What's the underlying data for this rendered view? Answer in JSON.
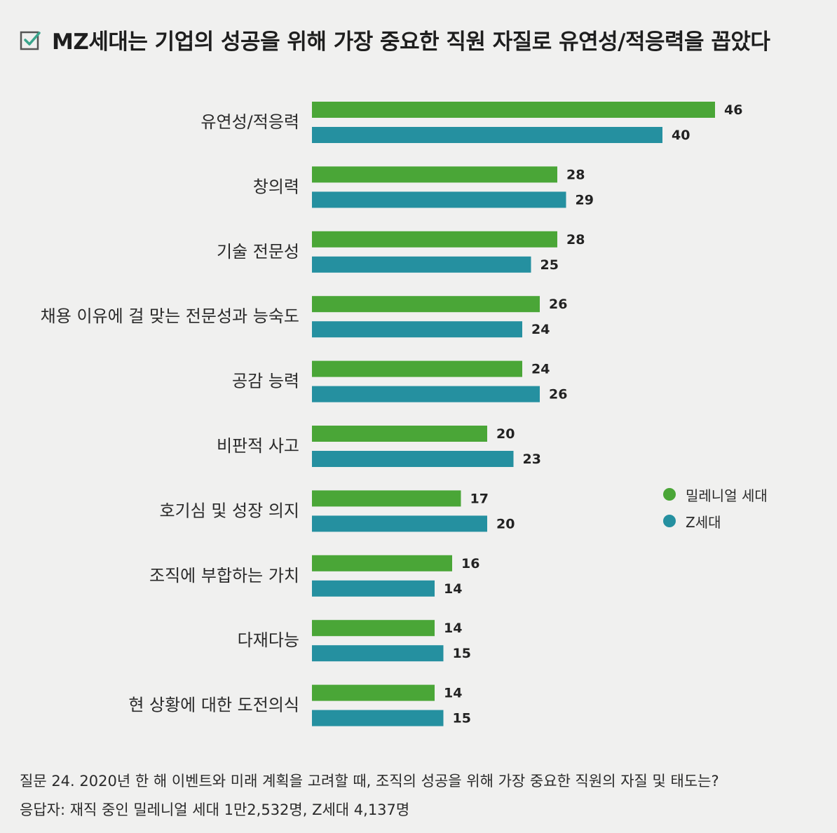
{
  "title": "MZ세대는 기업의 성공을 위해 가장 중요한 직원 자질로 유연성/적응력을 꼽았다",
  "icons": {
    "title_icon": "checkbox-check-icon"
  },
  "colors": {
    "millennial": "#4aa637",
    "genz": "#2590a0",
    "check_accent": "#3aa58c"
  },
  "chart_data": {
    "type": "bar",
    "orientation": "horizontal",
    "categories": [
      "유연성/적응력",
      "창의력",
      "기술 전문성",
      "채용 이유에 걸 맞는 전문성과 능숙도",
      "공감 능력",
      "비판적 사고",
      "호기심 및 성장 의지",
      "조직에 부합하는 가치",
      "다재다능",
      "현 상황에 대한 도전의식"
    ],
    "series": [
      {
        "name": "밀레니얼 세대",
        "color": "#4aa637",
        "values": [
          46,
          28,
          28,
          26,
          24,
          20,
          17,
          16,
          14,
          14
        ]
      },
      {
        "name": "Z세대",
        "color": "#2590a0",
        "values": [
          40,
          29,
          25,
          24,
          26,
          23,
          20,
          14,
          15,
          15
        ]
      }
    ],
    "legend_position": "right",
    "grid": false
  },
  "footer": {
    "question": "질문 24. 2020년 한 해 이벤트와 미래 계획을 고려할 때, 조직의 성공을 위해 가장 중요한 직원의 자질 및 태도는?",
    "respondents": "응답자: 재직 중인 밀레니얼 세대 1만2,532명, Z세대 4,137명"
  }
}
